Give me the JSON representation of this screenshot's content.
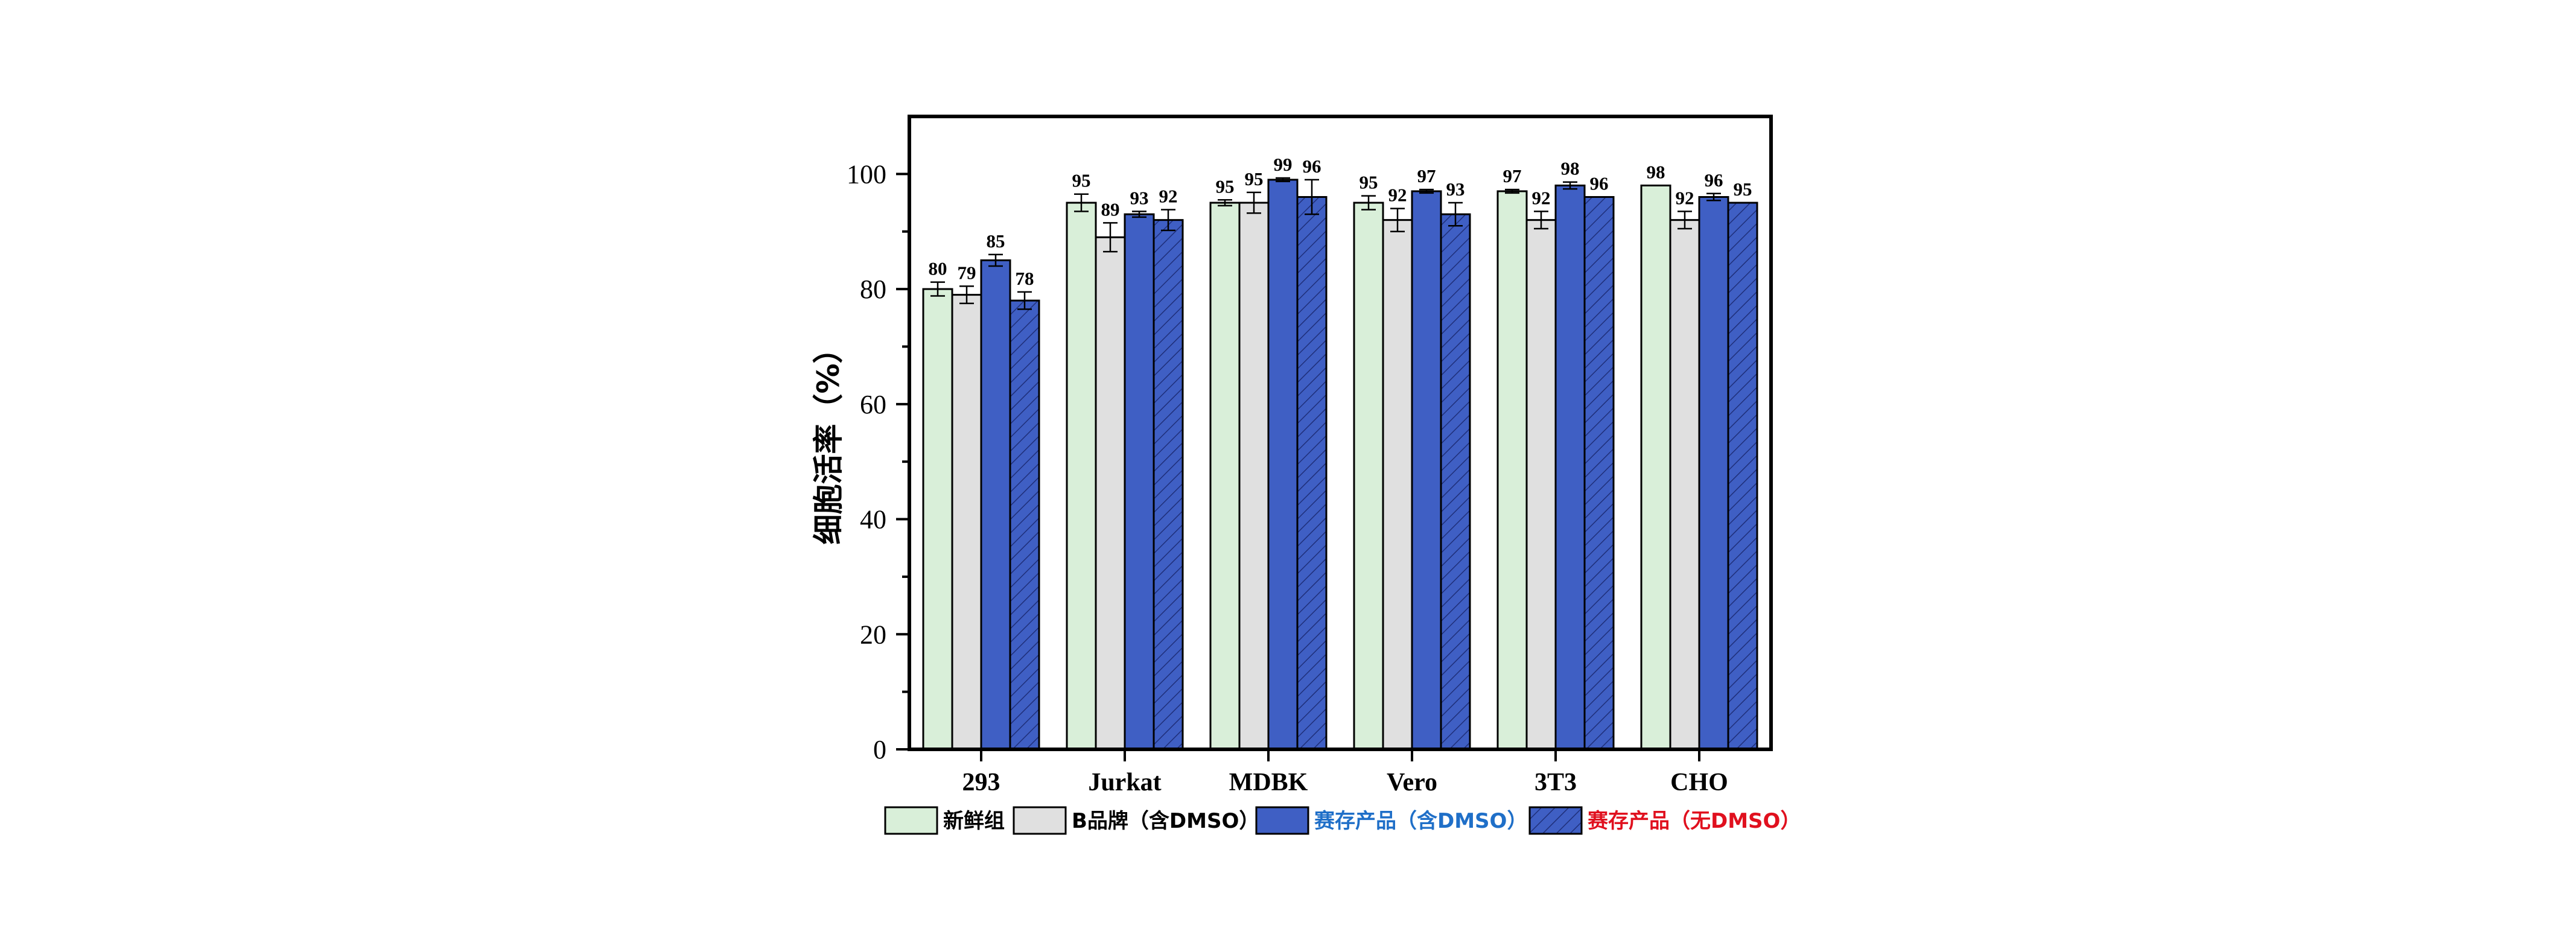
{
  "chart_data": {
    "type": "bar",
    "ylabel": "细胞活率（%）",
    "xlabel": "",
    "ylim": [
      0,
      110
    ],
    "yticks": [
      0,
      20,
      40,
      60,
      80,
      100
    ],
    "grid": false,
    "legend_position": "bottom",
    "categories": [
      "293",
      "Jurkat",
      "MDBK",
      "Vero",
      "3T3",
      "CHO"
    ],
    "series": [
      {
        "name": "新鲜组",
        "fill": "#d9efd9",
        "hatch": false,
        "legend_color": "#000000",
        "values": [
          80,
          95,
          95,
          95,
          97,
          98
        ],
        "errors": [
          1.2,
          1.5,
          0.5,
          1.2,
          0.3,
          0
        ],
        "labels": [
          "80",
          "95",
          "95",
          "95",
          "97",
          "98"
        ]
      },
      {
        "name": "B品牌（含DMSO）",
        "fill": "#e0e0e0",
        "hatch": false,
        "legend_color": "#000000",
        "values": [
          79,
          89,
          95,
          92,
          92,
          92
        ],
        "errors": [
          1.5,
          2.5,
          1.8,
          2.0,
          1.5,
          1.5
        ],
        "labels": [
          "79",
          "89",
          "95",
          "92",
          "92",
          "92"
        ]
      },
      {
        "name": "赛存产品（含DMSO）",
        "fill": "#3f5fc4",
        "hatch": false,
        "legend_color": "#1f6fc8",
        "values": [
          85,
          93,
          99,
          97,
          98,
          96
        ],
        "errors": [
          1.0,
          0.5,
          0.3,
          0.3,
          0.6,
          0.6
        ],
        "labels": [
          "85",
          "93",
          "99",
          "97",
          "98",
          "96"
        ]
      },
      {
        "name": "赛存产品（无DMSO）",
        "fill": "#3f5fc4",
        "hatch": true,
        "legend_color": "#e0101e",
        "values": [
          78,
          92,
          96,
          93,
          96,
          95
        ],
        "errors": [
          1.5,
          1.8,
          3.0,
          2.0,
          0,
          0
        ],
        "labels": [
          "78",
          "92",
          "96",
          "93",
          "96",
          "95"
        ]
      }
    ]
  }
}
